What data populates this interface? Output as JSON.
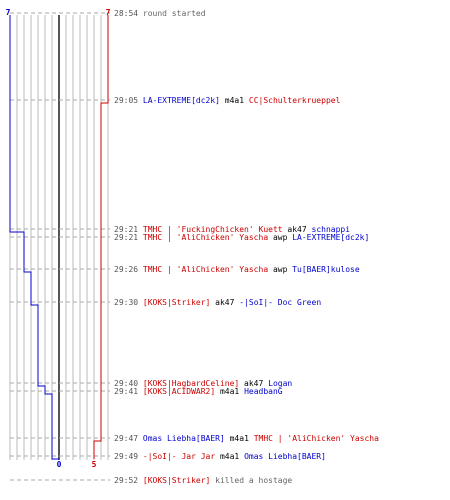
{
  "colors": {
    "blue": "#0000cc",
    "red": "#cc0000",
    "black": "#000000",
    "time": "#555555",
    "info": "#666666",
    "grid": "#bbbbbb",
    "axis": "#555555",
    "dash": "#aaaaaa"
  },
  "scores": {
    "blue_start": "7",
    "red_start": "7",
    "blue_end": "0",
    "red_end": "5"
  },
  "events": [
    {
      "time": "28:54",
      "parts": [
        {
          "text": "round started",
          "color": "info"
        }
      ]
    },
    {
      "time": "29:05",
      "parts": [
        {
          "text": "LA-EXTREME[dc2k]",
          "color": "blue"
        },
        {
          "text": " m4a1 ",
          "color": "black"
        },
        {
          "text": "CC|Schulterkrueppel",
          "color": "red"
        }
      ]
    },
    {
      "time": "29:21",
      "parts": [
        {
          "text": "TMHC | 'FuckingChicken' Kuett",
          "color": "red"
        },
        {
          "text": " ak47 ",
          "color": "black"
        },
        {
          "text": "schnappi",
          "color": "blue"
        }
      ]
    },
    {
      "time": "29:21",
      "parts": [
        {
          "text": "TMHC | 'AliChicken' Yascha",
          "color": "red"
        },
        {
          "text": " awp ",
          "color": "black"
        },
        {
          "text": "LA-EXTREME[dc2k]",
          "color": "blue"
        }
      ]
    },
    {
      "time": "29:26",
      "parts": [
        {
          "text": "TMHC | 'AliChicken' Yascha",
          "color": "red"
        },
        {
          "text": " awp ",
          "color": "black"
        },
        {
          "text": "Tu[BAER]kulose",
          "color": "blue"
        }
      ]
    },
    {
      "time": "29:30",
      "parts": [
        {
          "text": "[KOKS|Striker]",
          "color": "red"
        },
        {
          "text": " ak47 ",
          "color": "black"
        },
        {
          "text": "-|SoI|- Doc Green",
          "color": "blue"
        }
      ]
    },
    {
      "time": "29:40",
      "parts": [
        {
          "text": "[KOKS|HagbardCeline]",
          "color": "red"
        },
        {
          "text": " ak47 ",
          "color": "black"
        },
        {
          "text": "Logan",
          "color": "blue"
        }
      ]
    },
    {
      "time": "29:41",
      "parts": [
        {
          "text": "[KOKS|ACIDWAR2]",
          "color": "red"
        },
        {
          "text": " m4a1 ",
          "color": "black"
        },
        {
          "text": "HeadbanG",
          "color": "blue"
        }
      ]
    },
    {
      "time": "29:47",
      "parts": [
        {
          "text": "Omas Liebha[BAER]",
          "color": "blue"
        },
        {
          "text": " m4a1 ",
          "color": "black"
        },
        {
          "text": "TMHC | 'AliChicken' Yascha",
          "color": "red"
        }
      ]
    },
    {
      "time": "29:49",
      "parts": [
        {
          "text": "-|SoI|- Jar Jar",
          "color": "red"
        },
        {
          "text": " m4a1 ",
          "color": "black"
        },
        {
          "text": "Omas Liebha[BAER]",
          "color": "blue"
        }
      ]
    },
    {
      "time": "29:52",
      "parts": [
        {
          "text": "[KOKS|Striker]",
          "color": "red"
        },
        {
          "text": " killed a hostage",
          "color": "info"
        }
      ]
    }
  ]
}
